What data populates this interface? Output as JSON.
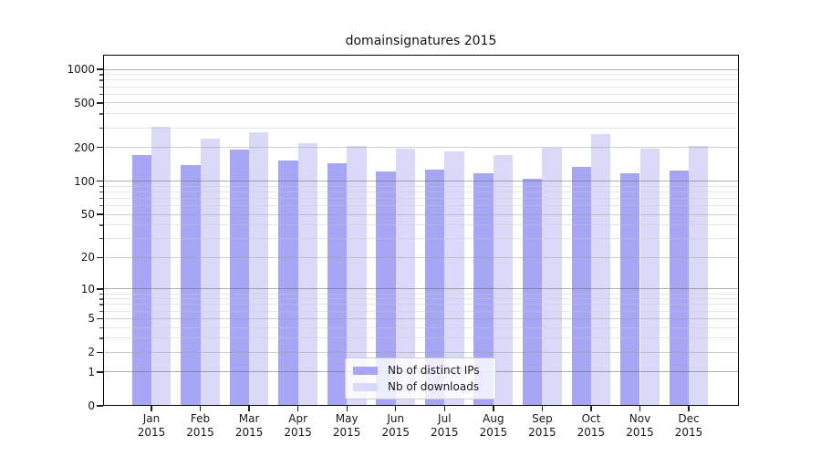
{
  "figure": {
    "background": "#ffffff"
  },
  "chart_data": {
    "type": "bar",
    "title": "domainsignatures 2015",
    "categories": [
      "Jan 2015",
      "Feb 2015",
      "Mar 2015",
      "Apr 2015",
      "May 2015",
      "Jun 2015",
      "Jul 2015",
      "Aug 2015",
      "Sep 2015",
      "Oct 2015",
      "Nov 2015",
      "Dec 2015"
    ],
    "series": [
      {
        "name": "Nb of distinct IPs",
        "color": "#a6a6f4",
        "values": [
          172,
          140,
          192,
          154,
          144,
          122,
          127,
          118,
          105,
          135,
          118,
          125
        ]
      },
      {
        "name": "Nb of downloads",
        "color": "#dadaf8",
        "values": [
          308,
          240,
          275,
          220,
          205,
          195,
          185,
          170,
          200,
          265,
          195,
          205
        ]
      }
    ],
    "yscale": "log1p",
    "ylim": [
      0,
      1350
    ],
    "yticks": [
      0,
      1,
      2,
      5,
      10,
      20,
      50,
      100,
      200,
      500,
      1000
    ],
    "ytick_labels": [
      "0",
      "1",
      "2",
      "5",
      "10",
      "20",
      "50",
      "100",
      "200",
      "500",
      "1000"
    ],
    "yticks_emphasized": [
      1,
      10,
      100,
      1000
    ],
    "yminor_ticks": [
      3,
      4,
      6,
      7,
      8,
      9,
      30,
      40,
      60,
      70,
      80,
      90,
      300,
      400,
      600,
      700,
      800,
      900
    ],
    "grid": "on",
    "legend_position": "lower center",
    "xlabel": "",
    "ylabel": ""
  },
  "colors": {
    "spine": "#000000",
    "grid_major": "#b0b0b0",
    "grid_labeled": "#d6d6d6",
    "grid_minor": "#e9e9e9",
    "text": "#1a1a1a"
  }
}
